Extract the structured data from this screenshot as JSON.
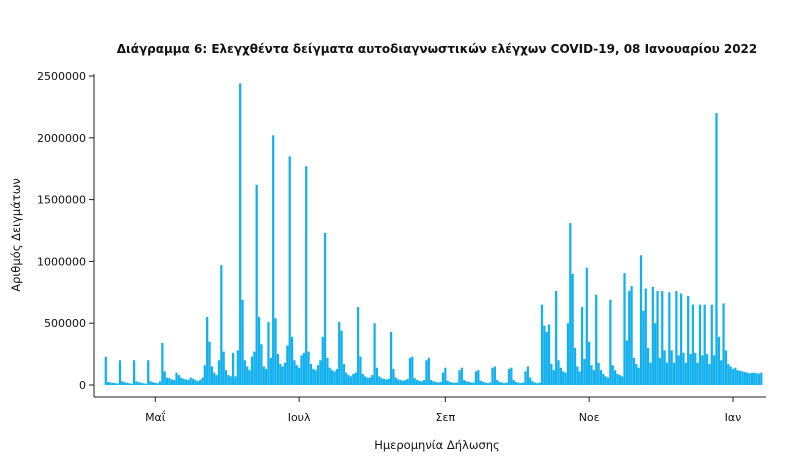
{
  "chart_data": {
    "type": "bar",
    "title": "Διάγραμμα 6: Ελεγχθέντα δείγματα αυτοδιαγνωστικών ελέγχων COVID-19, 08 Ιανουαρίου 2022",
    "xlabel": "Ημερομηνία Δήλωσης",
    "ylabel": "Αριθμός Δειγμάτων",
    "ylim": [
      0,
      2500000
    ],
    "y_ticks": [
      0,
      500000,
      1000000,
      1500000,
      2000000,
      2500000
    ],
    "y_tick_labels": [
      "0",
      "500000",
      "1000000",
      "1500000",
      "2000000",
      "2500000"
    ],
    "x_ticks": [
      {
        "date": "2021-05-01",
        "label": "Μαΐ"
      },
      {
        "date": "2021-07-01",
        "label": "Ιουλ"
      },
      {
        "date": "2021-09-01",
        "label": "Σεπ"
      },
      {
        "date": "2021-11-01",
        "label": "Νοε"
      },
      {
        "date": "2022-01-01",
        "label": "Ιαν"
      }
    ],
    "x_range": [
      "2021-04-05",
      "2022-01-15"
    ],
    "start_date": "2021-04-10",
    "bar_color": "#12b0ec",
    "grid": false,
    "values": [
      228000,
      25000,
      20000,
      18000,
      15000,
      12000,
      200000,
      30000,
      22000,
      18000,
      14000,
      10000,
      200000,
      30000,
      22000,
      18000,
      14000,
      10000,
      200000,
      30000,
      22000,
      18000,
      14000,
      30000,
      340000,
      110000,
      60000,
      55000,
      45000,
      40000,
      100000,
      80000,
      60000,
      50000,
      45000,
      40000,
      60000,
      50000,
      40000,
      30000,
      40000,
      60000,
      160000,
      550000,
      350000,
      150000,
      100000,
      80000,
      200000,
      970000,
      270000,
      120000,
      80000,
      70000,
      260000,
      70000,
      280000,
      2440000,
      690000,
      200000,
      150000,
      120000,
      230000,
      270000,
      1620000,
      550000,
      330000,
      150000,
      130000,
      510000,
      220000,
      2020000,
      540000,
      250000,
      170000,
      150000,
      180000,
      320000,
      1850000,
      390000,
      200000,
      160000,
      140000,
      240000,
      260000,
      1770000,
      270000,
      170000,
      130000,
      120000,
      160000,
      200000,
      390000,
      1230000,
      220000,
      140000,
      120000,
      110000,
      130000,
      510000,
      440000,
      170000,
      100000,
      80000,
      70000,
      90000,
      100000,
      630000,
      230000,
      90000,
      70000,
      60000,
      60000,
      80000,
      500000,
      140000,
      70000,
      55000,
      50000,
      45000,
      50000,
      430000,
      130000,
      60000,
      45000,
      40000,
      35000,
      40000,
      50000,
      220000,
      230000,
      55000,
      40000,
      35000,
      30000,
      40000,
      200000,
      220000,
      40000,
      30000,
      25000,
      20000,
      25000,
      100000,
      140000,
      35000,
      25000,
      20000,
      18000,
      20000,
      120000,
      140000,
      40000,
      30000,
      25000,
      20000,
      20000,
      110000,
      120000,
      35000,
      25000,
      20000,
      15000,
      20000,
      140000,
      150000,
      40000,
      25000,
      20000,
      15000,
      20000,
      130000,
      140000,
      40000,
      25000,
      20000,
      15000,
      20000,
      110000,
      150000,
      60000,
      30000,
      20000,
      15000,
      20000,
      650000,
      480000,
      430000,
      490000,
      170000,
      120000,
      760000,
      200000,
      140000,
      110000,
      100000,
      500000,
      1310000,
      900000,
      300000,
      150000,
      110000,
      630000,
      210000,
      950000,
      350000,
      160000,
      120000,
      730000,
      180000,
      120000,
      90000,
      70000,
      60000,
      690000,
      160000,
      120000,
      90000,
      80000,
      70000,
      905000,
      360000,
      760000,
      800000,
      220000,
      170000,
      140000,
      1050000,
      600000,
      780000,
      300000,
      180000,
      795000,
      500000,
      760000,
      220000,
      760000,
      280000,
      180000,
      750000,
      280000,
      180000,
      760000,
      240000,
      740000,
      260000,
      180000,
      720000,
      250000,
      650000,
      260000,
      180000,
      650000,
      240000,
      650000,
      250000,
      170000,
      650000,
      240000,
      2200000,
      390000,
      200000,
      660000,
      280000,
      170000,
      150000,
      130000,
      140000,
      120000,
      115000,
      110000,
      105000,
      100000,
      95000,
      98000,
      100000,
      95000,
      92000,
      100000
    ]
  }
}
